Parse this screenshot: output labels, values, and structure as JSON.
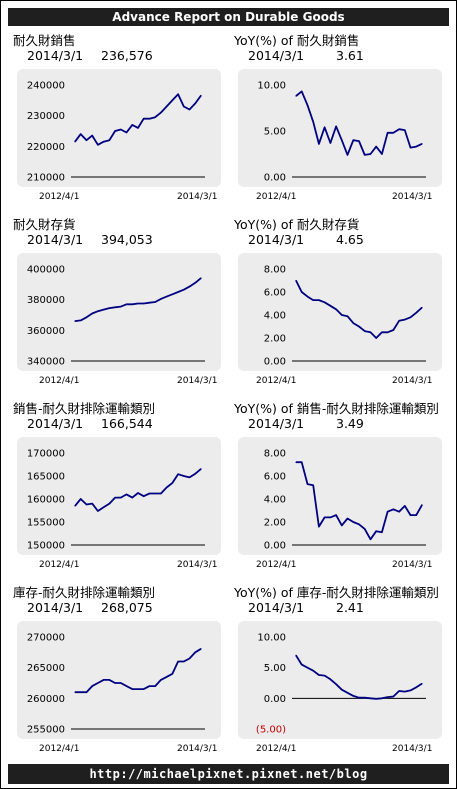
{
  "header": {
    "title": "Advance Report on Durable Goods"
  },
  "footer": {
    "url": "http://michaelpixnet.pixnet.net/blog"
  },
  "colors": {
    "line": "#000080",
    "plot_bg": "#ececec",
    "negative_label": "#cc0000",
    "bar": "#1f1f1f"
  },
  "chart_data": [
    {
      "type": "line",
      "title": "耐久財銷售",
      "latest_date": "2014/3/1",
      "latest_value": "236,576",
      "x_start_label": "2012/4/1",
      "x_end_label": "2014/3/1",
      "ylim": [
        210000,
        240000
      ],
      "yticks": [
        {
          "value": 210000,
          "label": "210000"
        },
        {
          "value": 220000,
          "label": "220000"
        },
        {
          "value": 230000,
          "label": "230000"
        },
        {
          "value": 240000,
          "label": "240000"
        }
      ],
      "values": [
        221500,
        224000,
        222000,
        223500,
        220500,
        221500,
        222000,
        225000,
        225500,
        224500,
        227000,
        226000,
        229000,
        229000,
        229500,
        231000,
        233000,
        235000,
        237000,
        233000,
        232000,
        234000,
        236576
      ]
    },
    {
      "type": "line",
      "title": "YoY(%) of 耐久財銷售",
      "latest_date": "2014/3/1",
      "latest_value": "3.61",
      "x_start_label": "2012/4/1",
      "x_end_label": "2014/3/1",
      "ylim": [
        0,
        10
      ],
      "yticks": [
        {
          "value": 0,
          "label": "0.00"
        },
        {
          "value": 5,
          "label": "5.00"
        },
        {
          "value": 10,
          "label": "10.00"
        }
      ],
      "values": [
        8.8,
        9.3,
        7.8,
        6.0,
        3.6,
        5.4,
        3.7,
        5.5,
        4.0,
        2.4,
        4.0,
        3.9,
        2.4,
        2.5,
        3.3,
        2.5,
        4.8,
        4.8,
        5.2,
        5.1,
        3.2,
        3.3,
        3.61
      ]
    },
    {
      "type": "line",
      "title": "耐久財存貨",
      "latest_date": "2014/3/1",
      "latest_value": "394,053",
      "x_start_label": "2012/4/1",
      "x_end_label": "2014/3/1",
      "ylim": [
        340000,
        400000
      ],
      "yticks": [
        {
          "value": 340000,
          "label": "340000"
        },
        {
          "value": 360000,
          "label": "360000"
        },
        {
          "value": 380000,
          "label": "380000"
        },
        {
          "value": 400000,
          "label": "400000"
        }
      ],
      "values": [
        366000,
        366500,
        368500,
        371000,
        372500,
        373500,
        374500,
        375000,
        375500,
        377000,
        377000,
        377500,
        377500,
        378000,
        378500,
        380500,
        382000,
        383500,
        385000,
        386500,
        388500,
        391000,
        394053
      ]
    },
    {
      "type": "line",
      "title": "YoY(%) of 耐久財存貨",
      "latest_date": "2014/3/1",
      "latest_value": "4.65",
      "x_start_label": "2012/4/1",
      "x_end_label": "2014/3/1",
      "ylim": [
        0,
        8
      ],
      "yticks": [
        {
          "value": 0,
          "label": "0.00"
        },
        {
          "value": 2,
          "label": "2.00"
        },
        {
          "value": 4,
          "label": "4.00"
        },
        {
          "value": 6,
          "label": "6.00"
        },
        {
          "value": 8,
          "label": "8.00"
        }
      ],
      "values": [
        7.0,
        6.0,
        5.6,
        5.3,
        5.3,
        5.1,
        4.8,
        4.5,
        4.0,
        3.9,
        3.3,
        3.0,
        2.6,
        2.5,
        2.0,
        2.5,
        2.5,
        2.7,
        3.5,
        3.6,
        3.8,
        4.2,
        4.65
      ]
    },
    {
      "type": "line",
      "title": "銷售-耐久財排除運輸類別",
      "latest_date": "2014/3/1",
      "latest_value": "166,544",
      "x_start_label": "2012/4/1",
      "x_end_label": "2014/3/1",
      "ylim": [
        150000,
        170000
      ],
      "yticks": [
        {
          "value": 150000,
          "label": "150000"
        },
        {
          "value": 155000,
          "label": "155000"
        },
        {
          "value": 160000,
          "label": "160000"
        },
        {
          "value": 165000,
          "label": "165000"
        },
        {
          "value": 170000,
          "label": "170000"
        }
      ],
      "values": [
        158500,
        160000,
        158800,
        159000,
        157400,
        158200,
        159000,
        160300,
        160300,
        161000,
        160300,
        161300,
        160600,
        161200,
        161200,
        161200,
        162500,
        163500,
        165400,
        165000,
        164700,
        165500,
        166544
      ]
    },
    {
      "type": "line",
      "title": "YoY(%) of 銷售-耐久財排除運輸類別",
      "latest_date": "2014/3/1",
      "latest_value": "3.49",
      "x_start_label": "2012/4/1",
      "x_end_label": "2014/3/1",
      "ylim": [
        0,
        8
      ],
      "yticks": [
        {
          "value": 0,
          "label": "0.00"
        },
        {
          "value": 2,
          "label": "2.00"
        },
        {
          "value": 4,
          "label": "4.00"
        },
        {
          "value": 6,
          "label": "6.00"
        },
        {
          "value": 8,
          "label": "8.00"
        }
      ],
      "values": [
        7.2,
        7.2,
        5.3,
        5.2,
        1.6,
        2.4,
        2.4,
        2.6,
        1.7,
        2.3,
        2.0,
        1.8,
        1.4,
        0.5,
        1.2,
        1.1,
        2.9,
        3.1,
        2.9,
        3.4,
        2.6,
        2.6,
        3.49
      ]
    },
    {
      "type": "line",
      "title": "庫存-耐久財排除運輸類別",
      "latest_date": "2014/3/1",
      "latest_value": "268,075",
      "x_start_label": "2012/4/1",
      "x_end_label": "2014/3/1",
      "ylim": [
        255000,
        270000
      ],
      "yticks": [
        {
          "value": 255000,
          "label": "255000"
        },
        {
          "value": 260000,
          "label": "260000"
        },
        {
          "value": 265000,
          "label": "265000"
        },
        {
          "value": 270000,
          "label": "270000"
        }
      ],
      "values": [
        261000,
        261000,
        261000,
        262000,
        262500,
        263000,
        263000,
        262500,
        262500,
        262000,
        261500,
        261500,
        261500,
        262000,
        262000,
        263000,
        263500,
        264000,
        266000,
        266000,
        266500,
        267500,
        268075
      ]
    },
    {
      "type": "line",
      "title": "YoY(%) of 庫存-耐久財排除運輸類別",
      "latest_date": "2014/3/1",
      "latest_value": "2.41",
      "x_start_label": "2012/4/1",
      "x_end_label": "2014/3/1",
      "ylim": [
        -5,
        10
      ],
      "yticks": [
        {
          "value": -5,
          "label": "(5.00)",
          "negative": true
        },
        {
          "value": 0,
          "label": "0.00"
        },
        {
          "value": 5,
          "label": "5.00"
        },
        {
          "value": 10,
          "label": "10.00"
        }
      ],
      "values": [
        7.0,
        5.5,
        5.0,
        4.5,
        3.8,
        3.7,
        3.1,
        2.3,
        1.4,
        0.9,
        0.4,
        0.1,
        0.1,
        0.0,
        -0.1,
        0.0,
        0.2,
        0.3,
        1.2,
        1.1,
        1.3,
        1.8,
        2.41
      ]
    }
  ]
}
